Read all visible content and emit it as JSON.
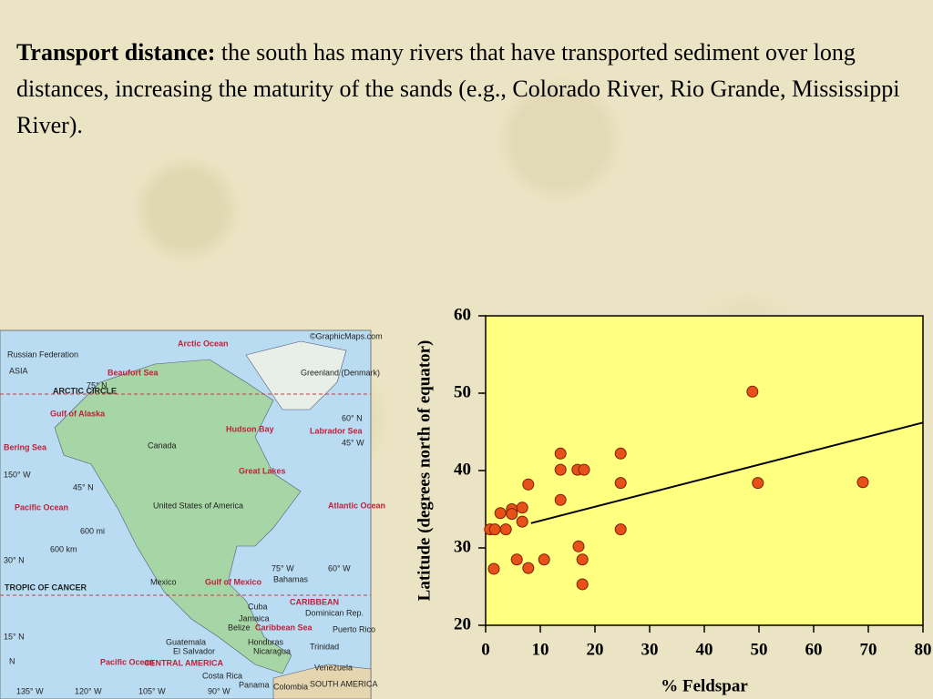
{
  "text": {
    "lead": "Transport distance:",
    "body": " the south has many rivers that have transported sediment over long distances, increasing the maturity of the sands (e.g., Colorado River, Rio Grande, Mississippi River)."
  },
  "map": {
    "labels": [
      "Russian Federation",
      "ASIA",
      "Arctic Ocean",
      "©GraphicMaps.com",
      "Beaufort Sea",
      "75° N",
      "Greenland (Denmark)",
      "ARCTIC CIRCLE",
      "Gulf of Alaska",
      "Bering Sea",
      "Hudson Bay",
      "Labrador Sea",
      "60° N",
      "45° W",
      "Canada",
      "150° W",
      "Great Lakes",
      "45° N",
      "Pacific Ocean",
      "United States of America",
      "Atlantic Ocean",
      "600 mi",
      "600 km",
      "30° N",
      "75° W",
      "60° W",
      "Gulf of Mexico",
      "Mexico",
      "Bahamas",
      "TROPIC OF CANCER",
      "CARIBBEAN",
      "Cuba",
      "Dominican Rep.",
      "Jamaica",
      "Belize",
      "Caribbean Sea",
      "Puerto Rico",
      "15° N",
      "Guatemala",
      "El Salvador",
      "Honduras",
      "Nicaragua",
      "Trinidad",
      "Pacific Ocean",
      "CENTRAL AMERICA",
      "Venezuela",
      "Costa Rica",
      "Panama",
      "Colombia",
      "SOUTH AMERICA",
      "135° W",
      "120° W",
      "105° W",
      "90° W",
      "N"
    ]
  },
  "chart_data": {
    "type": "scatter",
    "x_label": "% Feldspar",
    "y_label": "Latitude (degrees north of equator)",
    "xlim": [
      0,
      80
    ],
    "ylim": [
      20,
      60
    ],
    "xticks": [
      0,
      10,
      20,
      30,
      40,
      50,
      60,
      70,
      80
    ],
    "yticks": [
      20,
      30,
      40,
      50,
      60
    ],
    "background": "#ffff80",
    "color": "#e8501a",
    "x": [
      0.8,
      1.7,
      1.5,
      2.7,
      3.7,
      4.8,
      4.8,
      6.7,
      6.7,
      5.7,
      7.8,
      7.8,
      10.7,
      13.7,
      13.7,
      13.7,
      16.8,
      18,
      17,
      17.7,
      17.7,
      24.7,
      24.7,
      24.7,
      48.8,
      49.8,
      69
    ],
    "y": [
      32.4,
      32.4,
      27.3,
      34.5,
      32.4,
      35,
      34.4,
      35.2,
      33.4,
      28.5,
      38.2,
      27.4,
      28.5,
      42.2,
      40.1,
      36.2,
      40.1,
      40.1,
      30.2,
      28.5,
      25.3,
      42.2,
      38.4,
      32.4,
      50.2,
      38.4,
      38.5
    ],
    "trendline": {
      "x": [
        8.3,
        80
      ],
      "y": [
        33.2,
        46.2
      ]
    }
  }
}
